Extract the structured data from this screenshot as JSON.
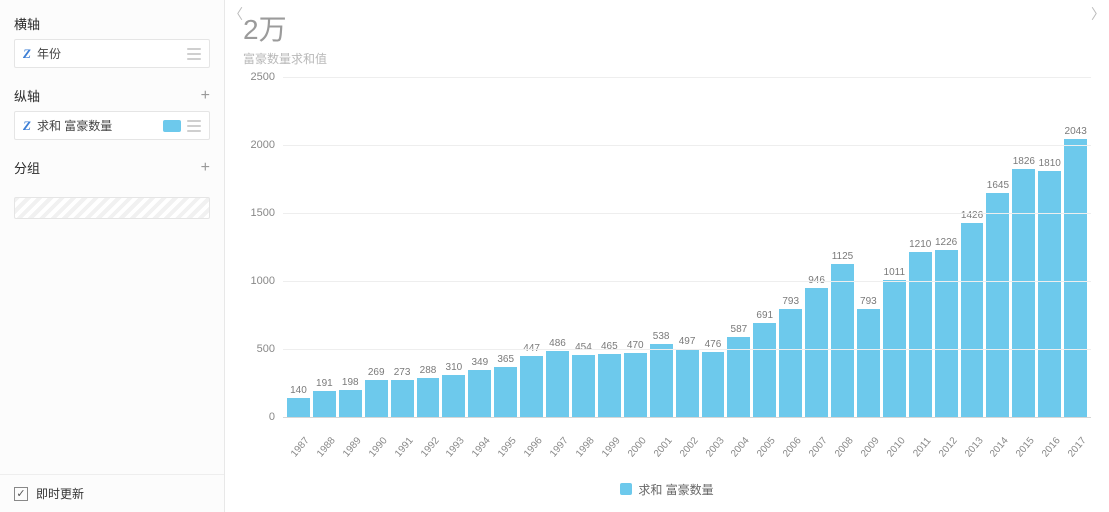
{
  "sidebar": {
    "xaxis_header": "横轴",
    "xaxis_field": "年份",
    "yaxis_header": "纵轴",
    "yaxis_field": "求和 富豪数量",
    "group_header": "分组",
    "footer": "即时更新",
    "swatch_color": "#6dc9ec"
  },
  "chart": {
    "title": "2万",
    "subtitle": "富豪数量求和值",
    "type": "bar",
    "bar_color": "#6dc9ec",
    "grid_color": "#eeeeee",
    "axis_color": "#d6d6d6",
    "text_color": "#7a7a7a",
    "background_color": "#ffffff",
    "ylim": [
      0,
      2500
    ],
    "ytick_step": 500,
    "yticks": [
      0,
      500,
      1000,
      1500,
      2000,
      2500
    ],
    "title_fontsize": 28,
    "label_fontsize": 10,
    "legend_label": "求和 富豪数量",
    "categories": [
      "1987",
      "1988",
      "1989",
      "1990",
      "1991",
      "1992",
      "1993",
      "1994",
      "1995",
      "1996",
      "1997",
      "1998",
      "1999",
      "2000",
      "2001",
      "2002",
      "2003",
      "2004",
      "2005",
      "2006",
      "2007",
      "2008",
      "2009",
      "2010",
      "2011",
      "2012",
      "2013",
      "2014",
      "2015",
      "2016",
      "2017"
    ],
    "values": [
      140,
      191,
      198,
      269,
      273,
      288,
      310,
      349,
      365,
      447,
      486,
      454,
      465,
      470,
      538,
      497,
      476,
      587,
      691,
      793,
      946,
      1125,
      793,
      1011,
      1210,
      1226,
      1426,
      1645,
      1826,
      1810,
      2043
    ]
  }
}
